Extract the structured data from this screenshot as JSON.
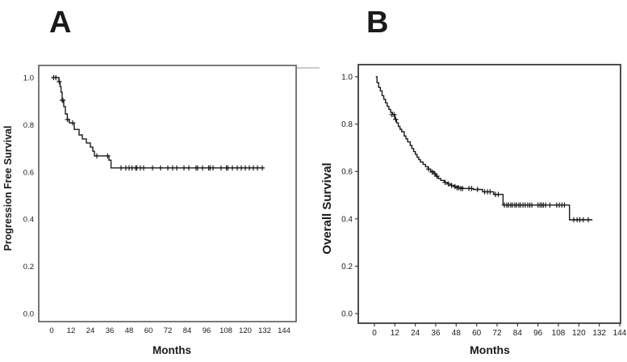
{
  "figure": {
    "background": "#ffffff",
    "text_color": "#1a1a1a",
    "artifact_color": "#cbcbcb"
  },
  "chart_data": [
    {
      "panel_label": "A",
      "type": "line",
      "subtype": "kaplan-meier-step",
      "title": "",
      "xlabel": "Months",
      "ylabel": "Progression Free Survival",
      "xticks": [
        0,
        12,
        24,
        36,
        48,
        60,
        72,
        84,
        96,
        108,
        120,
        132,
        144
      ],
      "ytick_labels": [
        "0.0",
        "0.2",
        "0.4",
        "0.6",
        "0.8",
        "1.0"
      ],
      "xlim": [
        -8,
        151
      ],
      "ylim": [
        -0.035,
        1.05
      ],
      "grid": false,
      "legend": "none",
      "line_color": "#1a1a1a",
      "frame_color": "#4d4d4d",
      "steps": [
        [
          0.5,
          1.0
        ],
        [
          4.5,
          0.983
        ],
        [
          5.2,
          0.962
        ],
        [
          5.8,
          0.938
        ],
        [
          6.5,
          0.904
        ],
        [
          7.5,
          0.877
        ],
        [
          8.5,
          0.846
        ],
        [
          9.7,
          0.822
        ],
        [
          11,
          0.808
        ],
        [
          14,
          0.78
        ],
        [
          17,
          0.757
        ],
        [
          19,
          0.74
        ],
        [
          21.5,
          0.723
        ],
        [
          24,
          0.705
        ],
        [
          25.5,
          0.688
        ],
        [
          26.5,
          0.668
        ],
        [
          35.5,
          0.65
        ],
        [
          36.8,
          0.617
        ]
      ],
      "end_month": 131.5,
      "censors": [
        [
          1.2,
          1.0
        ],
        [
          2.6,
          1.0
        ],
        [
          4.7,
          0.983
        ],
        [
          6.6,
          0.904
        ],
        [
          6.95,
          0.904
        ],
        [
          9.9,
          0.822
        ],
        [
          13,
          0.808
        ],
        [
          28,
          0.668
        ],
        [
          34.7,
          0.668
        ],
        [
          43,
          0.617
        ],
        [
          46,
          0.617
        ],
        [
          48,
          0.617
        ],
        [
          49.8,
          0.617
        ],
        [
          52,
          0.617
        ],
        [
          52.8,
          0.617
        ],
        [
          55,
          0.617
        ],
        [
          57,
          0.617
        ],
        [
          62.5,
          0.617
        ],
        [
          67.5,
          0.617
        ],
        [
          72,
          0.617
        ],
        [
          75,
          0.617
        ],
        [
          77.5,
          0.617
        ],
        [
          82,
          0.617
        ],
        [
          85,
          0.617
        ],
        [
          89.5,
          0.617
        ],
        [
          90.4,
          0.617
        ],
        [
          93.5,
          0.617
        ],
        [
          97.3,
          0.617
        ],
        [
          98.2,
          0.617
        ],
        [
          100,
          0.617
        ],
        [
          105,
          0.617
        ],
        [
          108.3,
          0.617
        ],
        [
          109.2,
          0.617
        ],
        [
          112,
          0.617
        ],
        [
          115,
          0.617
        ],
        [
          117.5,
          0.617
        ],
        [
          120,
          0.617
        ],
        [
          122.5,
          0.617
        ],
        [
          125,
          0.617
        ],
        [
          127.5,
          0.617
        ],
        [
          130.5,
          0.617
        ]
      ]
    },
    {
      "panel_label": "B",
      "type": "line",
      "subtype": "kaplan-meier-step",
      "title": "",
      "xlabel": "Months",
      "ylabel": "Overall Survival",
      "xticks": [
        0,
        12,
        24,
        36,
        48,
        60,
        72,
        84,
        96,
        108,
        120,
        132,
        144
      ],
      "ytick_labels": [
        "0.0",
        "0.2",
        "0.4",
        "0.6",
        "0.8",
        "1.0"
      ],
      "xlim": [
        -10,
        145
      ],
      "ylim": [
        -0.03,
        1.06
      ],
      "grid": false,
      "legend": "none",
      "line_color": "#1a1a1a",
      "frame_color": "#3a3a3a",
      "steps": [
        [
          0.8,
          1.0
        ],
        [
          1.5,
          0.975
        ],
        [
          2.5,
          0.955
        ],
        [
          3.5,
          0.94
        ],
        [
          4.5,
          0.92
        ],
        [
          5.5,
          0.905
        ],
        [
          6.5,
          0.89
        ],
        [
          7.5,
          0.875
        ],
        [
          8.5,
          0.862
        ],
        [
          9.5,
          0.85
        ],
        [
          10.5,
          0.84
        ],
        [
          12,
          0.82
        ],
        [
          13,
          0.805
        ],
        [
          14,
          0.79
        ],
        [
          15,
          0.778
        ],
        [
          16,
          0.768
        ],
        [
          17.5,
          0.75
        ],
        [
          18.5,
          0.738
        ],
        [
          19.5,
          0.725
        ],
        [
          21,
          0.71
        ],
        [
          22,
          0.697
        ],
        [
          23,
          0.684
        ],
        [
          24,
          0.672
        ],
        [
          25,
          0.66
        ],
        [
          26,
          0.65
        ],
        [
          27,
          0.64
        ],
        [
          28.5,
          0.63
        ],
        [
          30,
          0.62
        ],
        [
          31.5,
          0.61
        ],
        [
          33,
          0.6
        ],
        [
          35,
          0.59
        ],
        [
          36,
          0.58
        ],
        [
          37.5,
          0.57
        ],
        [
          39,
          0.562
        ],
        [
          41,
          0.554
        ],
        [
          43,
          0.547
        ],
        [
          45,
          0.541
        ],
        [
          47,
          0.536
        ],
        [
          49,
          0.531
        ],
        [
          52,
          0.528
        ],
        [
          58,
          0.524
        ],
        [
          63.5,
          0.514
        ],
        [
          70,
          0.503
        ],
        [
          75.5,
          0.458
        ],
        [
          114.5,
          0.396
        ]
      ],
      "end_month": 128,
      "censors": [
        [
          10.3,
          0.84
        ],
        [
          11.5,
          0.84
        ],
        [
          12.5,
          0.82
        ],
        [
          31.8,
          0.61
        ],
        [
          34,
          0.597
        ],
        [
          35.5,
          0.59
        ],
        [
          36.7,
          0.58
        ],
        [
          41.5,
          0.554
        ],
        [
          43.5,
          0.547
        ],
        [
          45.3,
          0.541
        ],
        [
          47.3,
          0.536
        ],
        [
          48.5,
          0.531
        ],
        [
          49.5,
          0.531
        ],
        [
          50.7,
          0.528
        ],
        [
          51.7,
          0.528
        ],
        [
          55.5,
          0.528
        ],
        [
          57,
          0.528
        ],
        [
          60.5,
          0.524
        ],
        [
          64.7,
          0.514
        ],
        [
          66.4,
          0.514
        ],
        [
          67.9,
          0.514
        ],
        [
          71,
          0.503
        ],
        [
          72.7,
          0.503
        ],
        [
          76.3,
          0.458
        ],
        [
          77.7,
          0.458
        ],
        [
          78.7,
          0.458
        ],
        [
          80,
          0.458
        ],
        [
          81,
          0.458
        ],
        [
          82.4,
          0.458
        ],
        [
          83.4,
          0.458
        ],
        [
          84.8,
          0.458
        ],
        [
          85.8,
          0.458
        ],
        [
          87.2,
          0.458
        ],
        [
          88.5,
          0.458
        ],
        [
          90,
          0.458
        ],
        [
          91.2,
          0.458
        ],
        [
          92.4,
          0.458
        ],
        [
          96,
          0.458
        ],
        [
          97.2,
          0.458
        ],
        [
          98.2,
          0.458
        ],
        [
          99.2,
          0.458
        ],
        [
          100.5,
          0.458
        ],
        [
          103,
          0.458
        ],
        [
          107,
          0.458
        ],
        [
          108.5,
          0.458
        ],
        [
          110,
          0.458
        ],
        [
          111.5,
          0.458
        ],
        [
          117,
          0.396
        ],
        [
          119,
          0.396
        ],
        [
          120.6,
          0.396
        ],
        [
          122.6,
          0.396
        ],
        [
          125.5,
          0.396
        ]
      ]
    }
  ]
}
